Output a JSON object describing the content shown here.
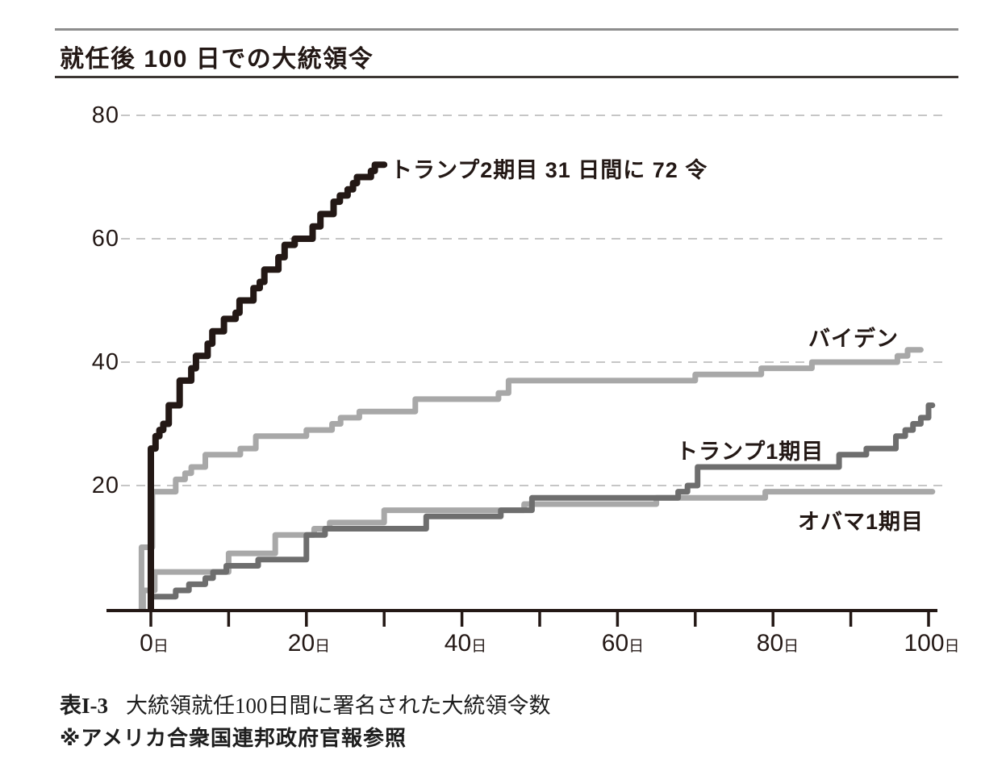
{
  "header": {
    "title": "就任後 100 日での大統領令"
  },
  "chart_data": {
    "type": "line",
    "step": true,
    "title": "就任後 100 日での大統領令",
    "grid": "dashed-horizontal",
    "legend_position": "inline-labels",
    "x_axis": {
      "unit": "日",
      "range_days": [
        -6,
        105
      ],
      "major_tick_days": [
        0,
        20,
        40,
        60,
        80,
        100
      ],
      "minor_tick_days": [
        10,
        30,
        50,
        70,
        90
      ],
      "labels": [
        {
          "num": "0",
          "unit": "日"
        },
        {
          "num": "20",
          "unit": "日"
        },
        {
          "num": "40",
          "unit": "日"
        },
        {
          "num": "60",
          "unit": "日"
        },
        {
          "num": "80",
          "unit": "日"
        },
        {
          "num": "100",
          "unit": "日"
        }
      ]
    },
    "y_axis": {
      "range": [
        0,
        84
      ],
      "ticks": [
        80,
        60,
        40,
        20
      ],
      "labels": [
        "80",
        "60",
        "40",
        "20"
      ]
    },
    "series": [
      {
        "id": "trump2",
        "label": "トランプ2期目 31 日間に 72 令",
        "color": "#231815",
        "final_day": 31,
        "final_value": 72,
        "end_day": 30,
        "points": [
          [
            0,
            26
          ],
          [
            0.6,
            28
          ],
          [
            1.1,
            29
          ],
          [
            1.6,
            30
          ],
          [
            2.3,
            33
          ],
          [
            3.7,
            37
          ],
          [
            5.2,
            39
          ],
          [
            5.8,
            41
          ],
          [
            7.3,
            43
          ],
          [
            7.9,
            45
          ],
          [
            9.4,
            47
          ],
          [
            10.9,
            48
          ],
          [
            11.4,
            50
          ],
          [
            13.2,
            52
          ],
          [
            14,
            53
          ],
          [
            14.6,
            55
          ],
          [
            16.4,
            57
          ],
          [
            17.2,
            59
          ],
          [
            18.5,
            60
          ],
          [
            20.8,
            62
          ],
          [
            21.8,
            64
          ],
          [
            23.5,
            66
          ],
          [
            24.3,
            67
          ],
          [
            25.3,
            68
          ],
          [
            26,
            69
          ],
          [
            26.5,
            70
          ],
          [
            28.3,
            71
          ],
          [
            28.8,
            72
          ]
        ]
      },
      {
        "id": "biden",
        "label": "バイデン",
        "color": "#a8a8a8",
        "final_value": 42,
        "end_day": 99,
        "points": [
          [
            -1.2,
            10
          ],
          [
            0.2,
            19
          ],
          [
            3.2,
            21
          ],
          [
            4.4,
            22
          ],
          [
            5.2,
            23
          ],
          [
            7,
            25
          ],
          [
            11.5,
            26
          ],
          [
            13.5,
            28
          ],
          [
            20,
            29
          ],
          [
            23.3,
            30
          ],
          [
            24.4,
            31
          ],
          [
            26.8,
            32
          ],
          [
            34,
            34
          ],
          [
            44.7,
            35
          ],
          [
            46,
            37
          ],
          [
            70,
            38
          ],
          [
            78.5,
            39
          ],
          [
            85,
            40
          ],
          [
            96,
            41
          ],
          [
            97.3,
            42
          ]
        ]
      },
      {
        "id": "trump1",
        "label": "トランプ1期目",
        "color": "#6e6e6e",
        "final_value": 33,
        "end_day": 100.5,
        "points": [
          [
            0,
            2
          ],
          [
            3.2,
            3
          ],
          [
            4.9,
            4
          ],
          [
            7,
            5
          ],
          [
            8,
            6
          ],
          [
            9.7,
            7
          ],
          [
            13.8,
            8
          ],
          [
            20,
            12
          ],
          [
            22.4,
            13
          ],
          [
            35.4,
            15
          ],
          [
            45,
            16
          ],
          [
            49,
            18
          ],
          [
            67.8,
            19
          ],
          [
            69,
            20
          ],
          [
            70.3,
            23
          ],
          [
            88.5,
            25
          ],
          [
            92,
            26
          ],
          [
            95.8,
            28
          ],
          [
            97,
            29
          ],
          [
            98,
            30
          ],
          [
            99,
            31
          ],
          [
            100,
            33
          ]
        ]
      },
      {
        "id": "obama",
        "label": "オバマ1期目",
        "color": "#a8a8a8",
        "final_value": 19,
        "end_day": 100.5,
        "points": [
          [
            -1,
            3
          ],
          [
            0.5,
            6
          ],
          [
            10,
            9
          ],
          [
            16,
            12
          ],
          [
            21,
            13
          ],
          [
            23,
            14
          ],
          [
            30,
            16
          ],
          [
            48,
            17
          ],
          [
            65,
            18
          ],
          [
            79,
            19
          ]
        ]
      }
    ]
  },
  "caption": {
    "table_no": "表I-3",
    "text": "大統領就任100日間に署名された大統領令数",
    "source": "※アメリカ合衆国連邦政府官報参照"
  }
}
